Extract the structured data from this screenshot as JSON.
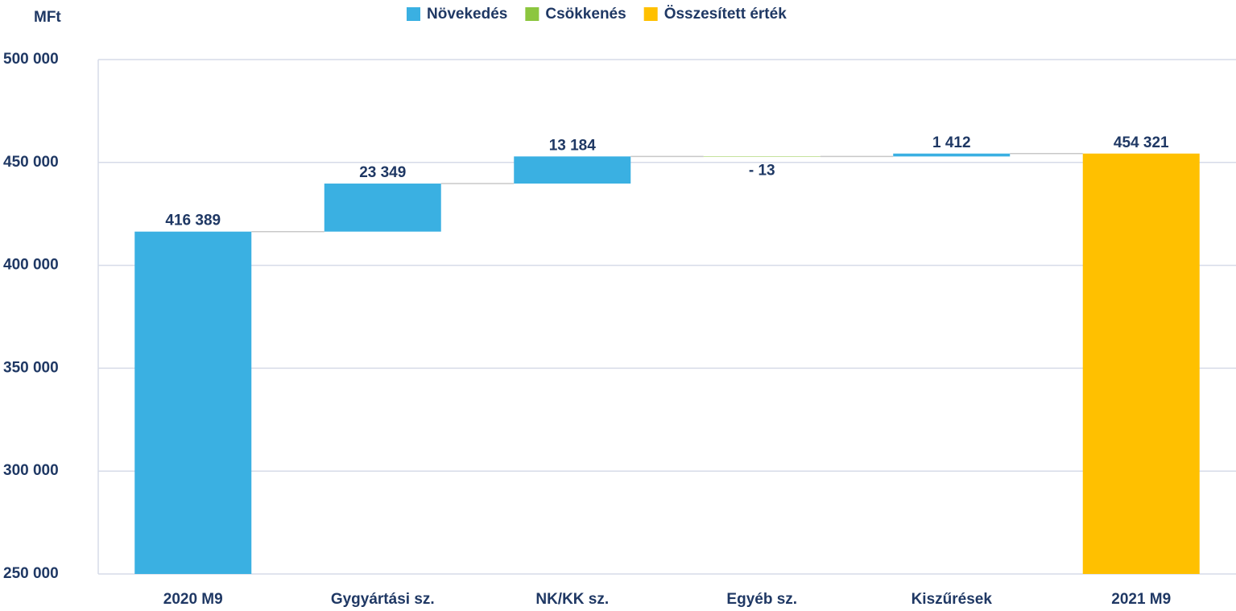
{
  "chart_data": {
    "type": "waterfall",
    "y_label": "MFt",
    "categories": [
      "2020 M9",
      "Gygyártási sz.",
      "NK/KK sz.",
      "Egyéb sz.",
      "Kiszűrések",
      "2021 M9"
    ],
    "measure": [
      "absolute",
      "relative",
      "relative",
      "relative",
      "relative",
      "total"
    ],
    "values": [
      416389,
      23349,
      13184,
      -13,
      1412,
      454321
    ],
    "value_labels": [
      "416 389",
      "23 349",
      "13 184",
      "- 13",
      "1 412",
      "454 321"
    ],
    "series": [
      {
        "name": "Növekedés",
        "color": "#3ab0e2"
      },
      {
        "name": "Csökkenés",
        "color": "#8cc63f"
      },
      {
        "name": "Összesített érték",
        "color": "#ffc000"
      }
    ],
    "ylim": [
      250000,
      500000
    ],
    "yticks": [
      {
        "value": 250000,
        "label": "250 000"
      },
      {
        "value": 300000,
        "label": "300 000"
      },
      {
        "value": 350000,
        "label": "350 000"
      },
      {
        "value": 400000,
        "label": "400 000"
      },
      {
        "value": 450000,
        "label": "450 000"
      },
      {
        "value": 500000,
        "label": "500 000"
      }
    ],
    "grid": true,
    "legend": "top"
  }
}
